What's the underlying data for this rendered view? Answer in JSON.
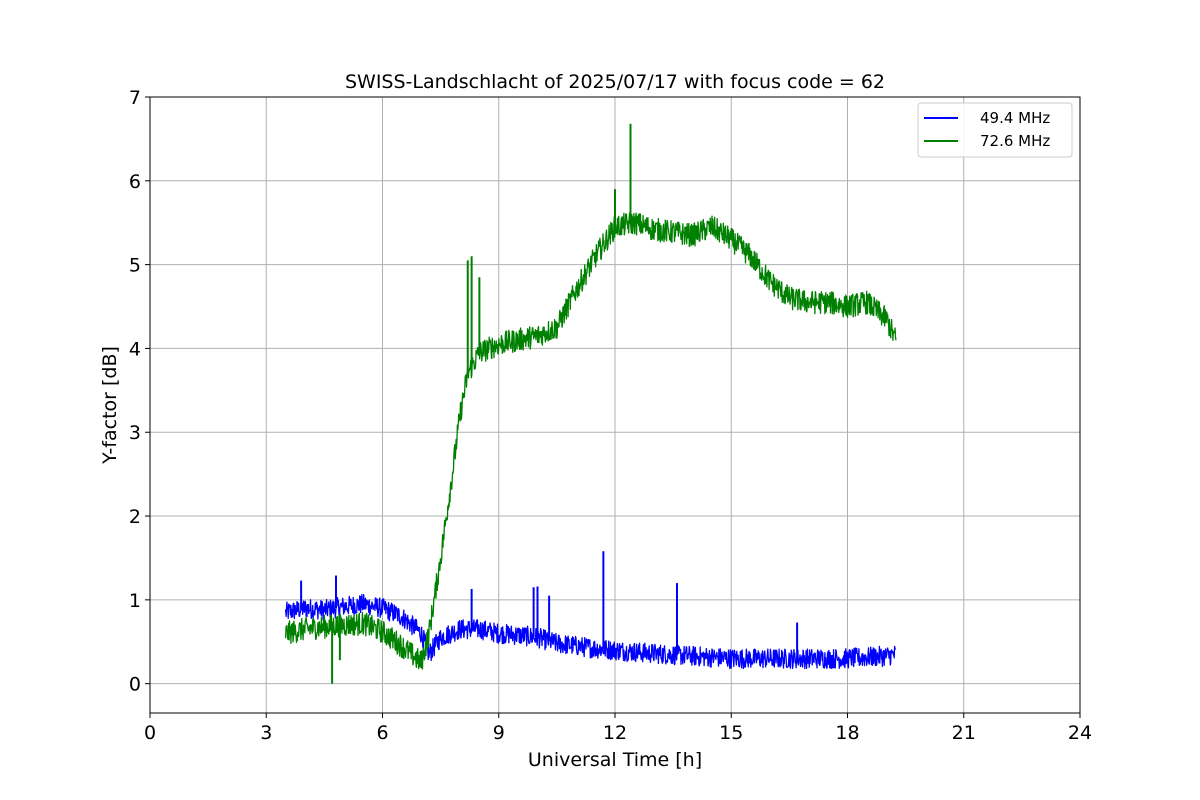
{
  "chart_data": {
    "type": "line",
    "title": "SWISS-Landschlacht of 2025/07/17 with focus code = 62",
    "xlabel": "Universal Time [h]",
    "ylabel": "Y-factor [dB]",
    "xlim": [
      0,
      24
    ],
    "ylim": [
      -0.35,
      7
    ],
    "xticks": [
      0,
      3,
      6,
      9,
      12,
      15,
      18,
      21,
      24
    ],
    "yticks": [
      0,
      1,
      2,
      3,
      4,
      5,
      6,
      7
    ],
    "grid": true,
    "legend_position": "top-right",
    "series": [
      {
        "name": "49.4 MHz",
        "color": "#0000ff",
        "noise": 0.12,
        "points": [
          [
            3.5,
            0.85
          ],
          [
            4.0,
            0.9
          ],
          [
            4.5,
            0.88
          ],
          [
            5.0,
            0.92
          ],
          [
            5.5,
            0.95
          ],
          [
            6.0,
            0.9
          ],
          [
            6.5,
            0.8
          ],
          [
            7.0,
            0.6
          ],
          [
            7.2,
            0.35
          ],
          [
            7.5,
            0.55
          ],
          [
            8.0,
            0.65
          ],
          [
            8.5,
            0.65
          ],
          [
            9.0,
            0.6
          ],
          [
            9.5,
            0.58
          ],
          [
            10.0,
            0.55
          ],
          [
            10.5,
            0.48
          ],
          [
            11.0,
            0.45
          ],
          [
            11.5,
            0.42
          ],
          [
            12.0,
            0.4
          ],
          [
            12.5,
            0.38
          ],
          [
            13.0,
            0.36
          ],
          [
            14.0,
            0.33
          ],
          [
            15.0,
            0.3
          ],
          [
            16.0,
            0.3
          ],
          [
            17.0,
            0.3
          ],
          [
            18.0,
            0.3
          ],
          [
            19.0,
            0.33
          ],
          [
            19.25,
            0.35
          ]
        ],
        "spikes": [
          [
            3.9,
            1.23
          ],
          [
            4.8,
            1.29
          ],
          [
            8.3,
            1.13
          ],
          [
            9.9,
            1.15
          ],
          [
            10.0,
            1.16
          ],
          [
            10.3,
            1.05
          ],
          [
            11.7,
            1.58
          ],
          [
            13.6,
            1.2
          ],
          [
            16.7,
            0.73
          ]
        ]
      },
      {
        "name": "72.6 MHz",
        "color": "#008000",
        "noise": 0.14,
        "points": [
          [
            3.5,
            0.6
          ],
          [
            4.0,
            0.65
          ],
          [
            4.5,
            0.68
          ],
          [
            5.0,
            0.7
          ],
          [
            5.5,
            0.72
          ],
          [
            6.0,
            0.62
          ],
          [
            6.5,
            0.45
          ],
          [
            7.0,
            0.25
          ],
          [
            7.2,
            0.6
          ],
          [
            7.5,
            1.5
          ],
          [
            7.8,
            2.5
          ],
          [
            8.0,
            3.2
          ],
          [
            8.2,
            3.7
          ],
          [
            8.5,
            3.95
          ],
          [
            9.0,
            4.05
          ],
          [
            9.5,
            4.1
          ],
          [
            10.0,
            4.15
          ],
          [
            10.5,
            4.25
          ],
          [
            11.0,
            4.7
          ],
          [
            11.5,
            5.1
          ],
          [
            12.0,
            5.45
          ],
          [
            12.5,
            5.5
          ],
          [
            13.0,
            5.42
          ],
          [
            14.0,
            5.35
          ],
          [
            14.5,
            5.45
          ],
          [
            15.0,
            5.3
          ],
          [
            15.5,
            5.1
          ],
          [
            16.0,
            4.8
          ],
          [
            16.5,
            4.6
          ],
          [
            17.0,
            4.55
          ],
          [
            17.5,
            4.55
          ],
          [
            18.0,
            4.5
          ],
          [
            18.5,
            4.55
          ],
          [
            19.0,
            4.35
          ],
          [
            19.25,
            4.1
          ]
        ],
        "spikes": [
          [
            4.7,
            0.0
          ],
          [
            4.9,
            0.28
          ],
          [
            8.2,
            5.05
          ],
          [
            8.3,
            5.1
          ],
          [
            8.5,
            4.85
          ],
          [
            12.4,
            6.68
          ],
          [
            12.0,
            5.9
          ]
        ]
      }
    ]
  }
}
